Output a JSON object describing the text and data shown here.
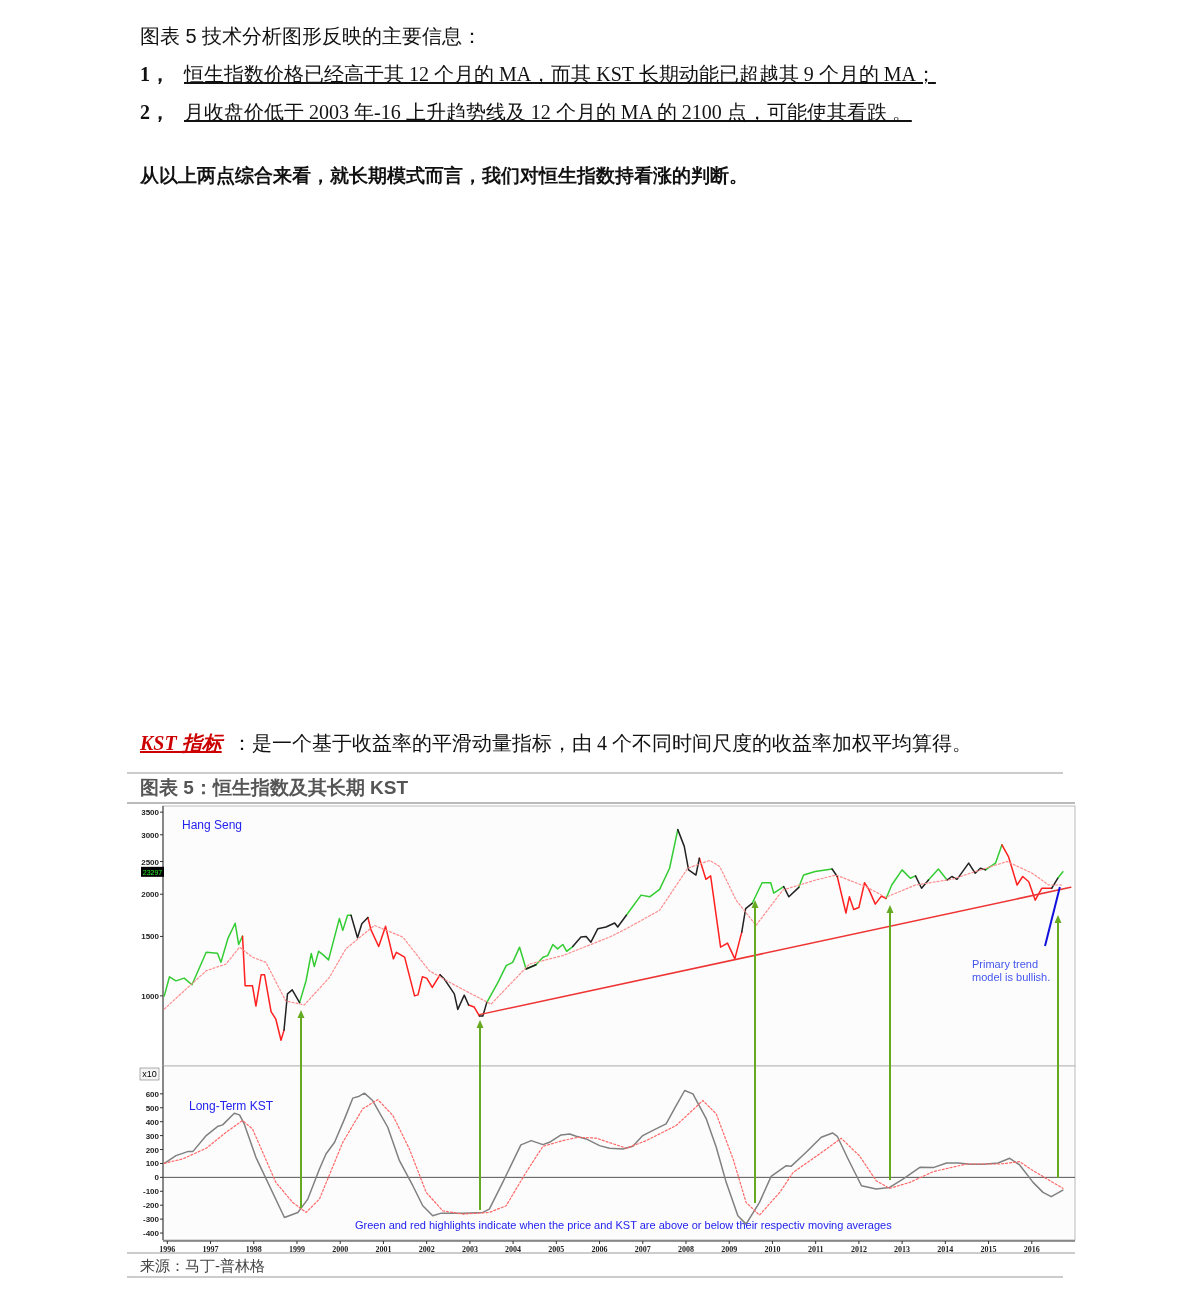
{
  "chart_data": [
    {
      "type": "line",
      "title": "图表 5：恒生指数及其长期 KST",
      "log": "y",
      "tick_labels": "y",
      "annotations": [
        "图表 5 技术分析图形反映的主要信息：",
        "1，恒生指数价格已经高于其 12 个月的 MA，而其 KST 长期动能已超越其 9 个月的 MA；",
        "2，月收盘价低于 2003 年-16 上升趋势线及 12 个月的 MA 的 2100 点，可能使其看跌 。",
        "从以上两点综合来看，就长期模式而言，我们对恒生指数持看涨的判断。",
        "KST 指标",
        "：是一个基于收益率的平滑动量指标，由 4 个不同时间尺度的收益率加权平均算得。",
        "Hang Seng",
        {
          "text": "Primary trend model is bullish.",
          "x": 2016.65,
          "y": 2100
        },
        {
          "text": "23297",
          "y": 2330
        }
      ],
      "xlim": [
        1995.9,
        2017.0
      ],
      "ylim": [
        620,
        3650
      ],
      "yticks": [
        1000,
        1500,
        2000,
        2500,
        3000,
        3500
      ],
      "x": [
        1995.93,
        1996.05,
        1996.2,
        1996.39,
        1996.57,
        1996.9,
        1997.16,
        1997.24,
        1997.4,
        1997.57,
        1997.65,
        1997.74,
        1997.8,
        1997.97,
        1998.05,
        1998.17,
        1998.25,
        1998.4,
        1998.51,
        1998.63,
        1998.7,
        1998.78,
        1998.89,
        1999.06,
        1999.21,
        1999.33,
        1999.4,
        1999.5,
        1999.6,
        1999.73,
        1999.98,
        2000.06,
        2000.17,
        2000.25,
        2000.4,
        2000.5,
        2000.64,
        2000.71,
        2000.89,
        2001.05,
        2001.23,
        2001.3,
        2001.49,
        2001.72,
        2001.8,
        2001.9,
        2002.0,
        2002.13,
        2002.31,
        2002.41,
        2002.64,
        2002.72,
        2002.87,
        2002.97,
        2003.1,
        2003.22,
        2003.3,
        2003.39,
        2003.65,
        2003.84,
        2003.99,
        2004.15,
        2004.3,
        2004.53,
        2004.69,
        2004.8,
        2004.92,
        2005.03,
        2005.15,
        2005.24,
        2005.38,
        2005.57,
        2005.69,
        2005.8,
        2005.96,
        2006.15,
        2006.35,
        2006.42,
        2006.62,
        2006.96,
        2007.16,
        2007.39,
        2007.62,
        2007.81,
        2007.96,
        2008.06,
        2008.23,
        2008.31,
        2008.46,
        2008.57,
        2008.8,
        2008.96,
        2009.13,
        2009.29,
        2009.38,
        2009.53,
        2009.76,
        2009.96,
        2010.03,
        2010.26,
        2010.38,
        2010.61,
        2010.72,
        2010.99,
        2011.38,
        2011.5,
        2011.7,
        2011.78,
        2011.88,
        2012.0,
        2012.13,
        2012.23,
        2012.38,
        2012.52,
        2012.63,
        2012.76,
        2013.0,
        2013.19,
        2013.31,
        2013.45,
        2013.61,
        2013.84,
        2014.04,
        2014.15,
        2014.27,
        2014.54,
        2014.69,
        2014.81,
        2014.93,
        2015.16,
        2015.31,
        2015.46,
        2015.66,
        2015.79,
        2015.93,
        2016.08,
        2016.23,
        2016.46,
        2016.6,
        2016.72
      ],
      "series": [
        {
          "color": "#33cc33",
          "values": [
            1000,
            1139,
            1108,
            1129,
            1079,
            1346,
            1338,
            1257,
            1477,
            1641,
            1420,
            1503,
            null,
            null,
            null,
            null,
            null,
            null,
            null,
            null,
            null,
            null,
            null,
            955,
            1109,
            1335,
            1221,
            1355,
            1325,
            1278,
            1694,
            1563,
            1733,
            1733,
            null,
            null,
            null,
            null,
            null,
            null,
            null,
            null,
            null,
            null,
            null,
            null,
            null,
            null,
            null,
            null,
            null,
            null,
            null,
            null,
            null,
            null,
            null,
            955,
            1096,
            1229,
            1257,
            1394,
            1201,
            1237,
            1302,
            1316,
            1420,
            1378,
            1420,
            1355,
            1400,
            null,
            null,
            null,
            null,
            null,
            null,
            null,
            1733,
            1988,
            1965,
            2068,
            2388,
            3107,
            null,
            null,
            null,
            null,
            null,
            null,
            null,
            null,
            null,
            null,
            null,
            1878,
            2163,
            2163,
            2015,
            2106,
            null,
            2096,
            2280,
            2335,
            2376,
            null,
            null,
            null,
            null,
            null,
            null,
            null,
            null,
            null,
            1943,
            2130,
            2361,
            2230,
            2266,
            null,
            2203,
            2376,
            2203,
            null,
            null,
            null,
            null,
            null,
            2361,
            2472,
            2801,
            null,
            null,
            null,
            null,
            null,
            null,
            null,
            2230,
            2330
          ]
        },
        {
          "color": "#ff2020",
          "values": [
            null,
            null,
            null,
            null,
            null,
            null,
            null,
            null,
            null,
            null,
            null,
            1503,
            1071,
            1071,
            933,
            1155,
            1155,
            898,
            854,
            739,
            792,
            null,
            null,
            null,
            null,
            null,
            null,
            null,
            null,
            null,
            null,
            null,
            null,
            null,
            null,
            null,
            1706,
            1571,
            1400,
            1607,
            1287,
            1346,
            1302,
            1000,
            1007,
            1139,
            1129,
            1059,
            1155,
            null,
            null,
            null,
            null,
            940,
            927,
            872,
            null,
            null,
            null,
            null,
            null,
            null,
            null,
            null,
            null,
            null,
            null,
            null,
            null,
            null,
            null,
            null,
            null,
            null,
            null,
            null,
            null,
            null,
            null,
            null,
            null,
            null,
            null,
            null,
            null,
            null,
            null,
            2557,
            2214,
            2266,
            1394,
            1433,
            1287,
            1545,
            null,
            null,
            null,
            null,
            null,
            null,
            null,
            null,
            null,
            null,
            null,
            2257,
            1760,
            1965,
            1802,
            1827,
            2163,
            2068,
            1869,
            1974,
            1943,
            null,
            null,
            null,
            null,
            null,
            null,
            null,
            null,
            null,
            null,
            null,
            null,
            null,
            null,
            null,
            2801,
            2586,
            2130,
            2257,
            2178,
            1921,
            2083,
            2083,
            null,
            null
          ]
        },
        {
          "color": "#222222",
          "values": [
            null,
            null,
            null,
            null,
            null,
            null,
            null,
            null,
            null,
            null,
            null,
            null,
            null,
            null,
            null,
            null,
            null,
            null,
            null,
            null,
            792,
            1014,
            1042,
            955,
            null,
            null,
            null,
            null,
            null,
            null,
            null,
            null,
            null,
            1733,
            1487,
            1636,
            1706,
            null,
            null,
            null,
            null,
            null,
            null,
            null,
            null,
            null,
            null,
            null,
            1155,
            1121,
            1014,
            912,
            1005,
            940,
            null,
            872,
            872,
            955,
            null,
            null,
            null,
            null,
            1201,
            1237,
            null,
            null,
            null,
            null,
            null,
            null,
            1400,
            1493,
            1500,
            1442,
            1581,
            1599,
            1644,
            1599,
            1733,
            null,
            null,
            null,
            null,
            3107,
            2772,
            2361,
            2280,
            2557,
            null,
            null,
            null,
            null,
            null,
            1545,
            1814,
            1878,
            null,
            null,
            null,
            2106,
            1965,
            2096,
            null,
            null,
            2376,
            2257,
            null,
            null,
            null,
            null,
            null,
            null,
            null,
            null,
            null,
            null,
            null,
            null,
            2266,
            2083,
            2203,
            null,
            2203,
            2257,
            2214,
            2472,
            2308,
            2388,
            2361,
            null,
            null,
            null,
            null,
            null,
            null,
            null,
            null,
            2083,
            2230,
            null
          ]
        },
        {
          "color": "#ff8c8c",
          "line_style": "dotted",
          "x": [
            1995.93,
            1996.39,
            1996.9,
            1997.36,
            1997.67,
            1997.97,
            1998.28,
            1998.74,
            1999.17,
            1999.75,
            2000.13,
            2000.79,
            2001.45,
            2002.06,
            2002.68,
            2003.49,
            2004.38,
            2005.15,
            2006.23,
            2006.62,
            2007.39,
            2008.04,
            2008.55,
            2008.78,
            2009.16,
            2009.62,
            2010.24,
            2011.0,
            2011.47,
            2012.16,
            2012.62,
            2013.31,
            2014.15,
            2014.93,
            2015.43,
            2016.01,
            2016.39,
            2016.69
          ],
          "values": [
            914,
            1035,
            1187,
            1243,
            1394,
            1302,
            1257,
            966,
            940,
            1134,
            1378,
            1617,
            1493,
            1187,
            1071,
            945,
            1243,
            1316,
            1493,
            1581,
            1793,
            2388,
            2518,
            2417,
            1921,
            1617,
            2058,
            2203,
            2280,
            2106,
            1958,
            2130,
            2214,
            2388,
            2500,
            2308,
            2130,
            2130
          ]
        },
        {
          "color": "#ee3333",
          "x": [
            2003.22,
            2016.9
          ],
          "values": [
            880,
            2096
          ]
        }
      ]
    },
    {
      "type": "line",
      "ylabel": "x10",
      "annotations": [
        "Long-Term KST",
        "Green and red highlights indicate when the price and KST are above or below their respectiv moving averages",
        "来源：马丁-普林格"
      ],
      "xlim": [
        1995.9,
        2017.0
      ],
      "xticks": [
        1996,
        1997,
        1998,
        1999,
        2000,
        2001,
        2002,
        2003,
        2004,
        2005,
        2006,
        2007,
        2008,
        2009,
        2010,
        2011,
        2012,
        2013,
        2014,
        2015,
        2016
      ],
      "ylim": [
        -450,
        800
      ],
      "yticks": [
        -400,
        -300,
        -200,
        -100,
        0,
        100,
        200,
        300,
        400,
        500,
        600
      ],
      "ref_lines": [
        {
          "axis": "y",
          "value": 0,
          "color": "#555555"
        }
      ],
      "series": [
        {
          "color": "#808080",
          "x": [
            1995.93,
            1996.2,
            1996.47,
            1996.59,
            1996.9,
            1997.16,
            1997.28,
            1997.55,
            1997.67,
            1997.78,
            1998.05,
            1998.71,
            1999.02,
            1999.25,
            1999.52,
            1999.67,
            1999.87,
            2000.1,
            2000.29,
            2000.44,
            2000.56,
            2000.75,
            2001.1,
            2001.37,
            2001.68,
            2001.91,
            2002.14,
            2002.34,
            2002.84,
            2003.3,
            2003.45,
            2003.76,
            2004.18,
            2004.42,
            2004.69,
            2004.84,
            2005.11,
            2005.31,
            2005.46,
            2005.69,
            2006.0,
            2006.23,
            2006.54,
            2006.77,
            2007.0,
            2007.27,
            2007.54,
            2007.73,
            2007.97,
            2008.16,
            2008.47,
            2008.7,
            2008.93,
            2009.2,
            2009.39,
            2009.7,
            2009.97,
            2010.32,
            2010.43,
            2010.78,
            2011.13,
            2011.39,
            2011.5,
            2011.75,
            2012.06,
            2012.4,
            2012.71,
            2013.02,
            2013.41,
            2013.72,
            2014.03,
            2014.3,
            2014.57,
            2014.88,
            2015.22,
            2015.49,
            2015.72,
            2016.03,
            2016.26,
            2016.45,
            2016.72
          ],
          "values": [
            101,
            156,
            185,
            185,
            300,
            365,
            377,
            461,
            449,
            384,
            144,
            -288,
            -252,
            -156,
            60,
            168,
            252,
            420,
            569,
            583,
            605,
            552,
            360,
            120,
            -60,
            -204,
            -276,
            -257,
            -257,
            -252,
            -228,
            -36,
            233,
            264,
            235,
            252,
            305,
            312,
            295,
            276,
            228,
            209,
            204,
            223,
            300,
            343,
            384,
            492,
            624,
            600,
            420,
            216,
            -36,
            -276,
            -336,
            -180,
            7,
            84,
            79,
            180,
            288,
            319,
            295,
            132,
            -60,
            -84,
            -72,
            -12,
            72,
            70,
            103,
            103,
            94,
            94,
            103,
            137,
            89,
            -36,
            -108,
            -139,
            -91
          ]
        },
        {
          "color": "#ff6666",
          "line_style": "dotted",
          "x": [
            1995.93,
            1996.35,
            1996.9,
            1997.36,
            1997.74,
            1997.97,
            1998.51,
            1998.9,
            1999.21,
            1999.52,
            2000.06,
            2000.52,
            2000.87,
            2001.22,
            2001.6,
            2001.99,
            2002.37,
            2002.84,
            2003.45,
            2003.84,
            2004.3,
            2004.69,
            2005.15,
            2005.5,
            2005.92,
            2006.62,
            2007.08,
            2007.77,
            2008.39,
            2008.7,
            2009.09,
            2009.39,
            2009.7,
            2010.17,
            2010.48,
            2011.09,
            2011.59,
            2012.01,
            2012.4,
            2012.71,
            2013.18,
            2013.72,
            2014.49,
            2015.26,
            2015.72,
            2016.03,
            2016.72
          ],
          "values": [
            101,
            132,
            209,
            324,
            408,
            348,
            -36,
            -180,
            -252,
            -156,
            252,
            492,
            559,
            444,
            204,
            -108,
            -240,
            -264,
            -252,
            -204,
            36,
            223,
            264,
            288,
            282,
            209,
            264,
            372,
            552,
            456,
            132,
            -180,
            -271,
            -108,
            36,
            168,
            281,
            156,
            -24,
            -79,
            -36,
            41,
            96,
            96,
            113,
            48,
            -79
          ]
        }
      ]
    }
  ]
}
